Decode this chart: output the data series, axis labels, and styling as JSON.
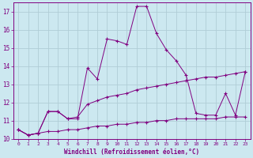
{
  "xlabel": "Windchill (Refroidissement éolien,°C)",
  "background_color": "#cce8f0",
  "grid_color": "#b0cdd6",
  "line_color": "#800080",
  "x_hours": [
    0,
    1,
    2,
    3,
    4,
    5,
    6,
    7,
    8,
    9,
    10,
    11,
    12,
    13,
    14,
    15,
    16,
    17,
    18,
    19,
    20,
    21,
    22,
    23
  ],
  "temp_line": [
    10.5,
    10.2,
    10.3,
    11.5,
    11.5,
    11.1,
    11.1,
    13.9,
    13.3,
    15.5,
    15.4,
    15.2,
    17.3,
    17.3,
    15.8,
    14.9,
    14.3,
    13.5,
    11.4,
    11.3,
    11.3,
    12.5,
    11.3,
    13.7
  ],
  "windchill_line": [
    10.5,
    10.2,
    10.3,
    11.5,
    11.5,
    11.1,
    11.2,
    11.9,
    12.1,
    12.3,
    12.4,
    12.5,
    12.7,
    12.8,
    12.9,
    13.0,
    13.1,
    13.2,
    13.3,
    13.4,
    13.4,
    13.5,
    13.6,
    13.7
  ],
  "min_line": [
    10.5,
    10.2,
    10.3,
    10.4,
    10.4,
    10.5,
    10.5,
    10.6,
    10.7,
    10.7,
    10.8,
    10.8,
    10.9,
    10.9,
    11.0,
    11.0,
    11.1,
    11.1,
    11.1,
    11.1,
    11.1,
    11.2,
    11.2,
    11.2
  ],
  "ylim": [
    10,
    17.5
  ],
  "xlim_min": -0.5,
  "xlim_max": 23.5,
  "yticks": [
    10,
    11,
    12,
    13,
    14,
    15,
    16,
    17
  ],
  "xticks": [
    0,
    1,
    2,
    3,
    4,
    5,
    6,
    7,
    8,
    9,
    10,
    11,
    12,
    13,
    14,
    15,
    16,
    17,
    18,
    19,
    20,
    21,
    22,
    23
  ]
}
